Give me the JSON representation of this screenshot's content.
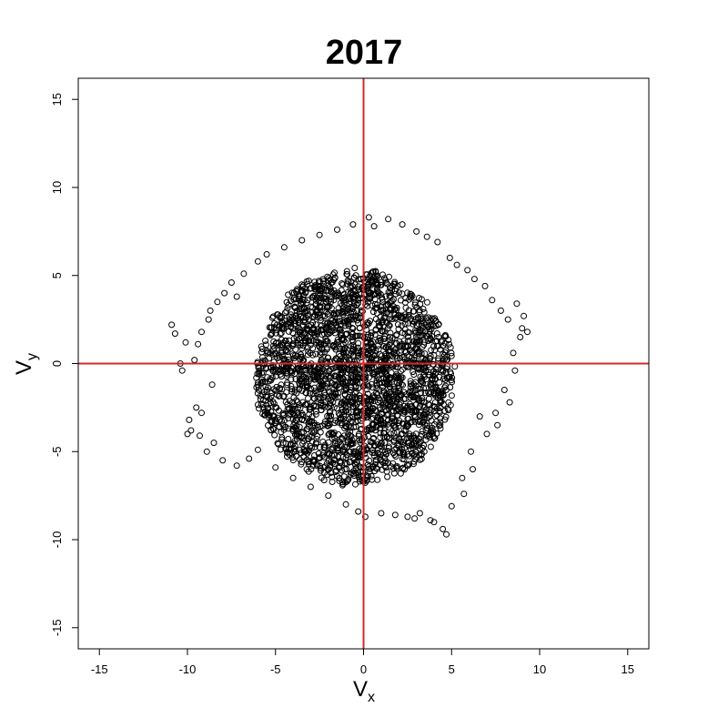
{
  "chart_data": {
    "type": "scatter",
    "title": "2017",
    "xlabel": {
      "main": "V",
      "subscript": "x"
    },
    "ylabel": {
      "main": "V",
      "subscript": "y"
    },
    "xlim": [
      -16.2,
      16.2
    ],
    "ylim": [
      -16.2,
      16.2
    ],
    "x_ticks": [
      -15,
      -10,
      -5,
      0,
      5,
      10,
      15
    ],
    "y_ticks": [
      -15,
      -10,
      -5,
      0,
      5,
      10,
      15
    ],
    "x_tick_labels": [
      "-15",
      "-10",
      "-5",
      "0",
      "5",
      "10",
      "15"
    ],
    "y_tick_labels": [
      "-15",
      "-10",
      "-5",
      "0",
      "5",
      "10",
      "15"
    ],
    "reference_lines": {
      "x": 0,
      "y": 0,
      "color": "#d62728"
    },
    "marker": {
      "shape": "open-circle",
      "color": "#000000"
    },
    "grid": false,
    "cloud": {
      "center": [
        -0.5,
        -0.8
      ],
      "approx_x_range": [
        -10.8,
        9.3
      ],
      "approx_y_range": [
        -9.7,
        8.3
      ]
    },
    "points": [
      [
        -10.9,
        2.2
      ],
      [
        -10.7,
        1.7
      ],
      [
        -10.4,
        0.0
      ],
      [
        -10.3,
        -0.4
      ],
      [
        -10.1,
        1.2
      ],
      [
        -10.0,
        -4.0
      ],
      [
        -9.9,
        -3.2
      ],
      [
        -9.6,
        0.2
      ],
      [
        -9.5,
        -2.5
      ],
      [
        -9.4,
        1.1
      ],
      [
        -9.3,
        -4.1
      ],
      [
        -9.2,
        1.8
      ],
      [
        -8.9,
        -5.0
      ],
      [
        -8.8,
        2.5
      ],
      [
        -8.7,
        3.0
      ],
      [
        -8.5,
        -4.5
      ],
      [
        -8.3,
        3.5
      ],
      [
        -8.0,
        -5.5
      ],
      [
        -7.9,
        4.0
      ],
      [
        -7.5,
        4.6
      ],
      [
        -7.2,
        -5.8
      ],
      [
        -6.8,
        5.1
      ],
      [
        -6.5,
        -5.4
      ],
      [
        -6.0,
        5.8
      ],
      [
        -5.5,
        6.2
      ],
      [
        -5.0,
        -5.9
      ],
      [
        -4.5,
        6.6
      ],
      [
        -4.0,
        -6.5
      ],
      [
        -3.5,
        7.0
      ],
      [
        -3.0,
        -7.0
      ],
      [
        -2.5,
        7.3
      ],
      [
        -2.0,
        -7.5
      ],
      [
        -1.5,
        7.6
      ],
      [
        -1.0,
        -8.0
      ],
      [
        -0.6,
        7.9
      ],
      [
        -0.3,
        -8.4
      ],
      [
        0.1,
        -8.7
      ],
      [
        0.3,
        8.3
      ],
      [
        0.6,
        7.8
      ],
      [
        1.0,
        -8.5
      ],
      [
        1.4,
        8.2
      ],
      [
        1.8,
        -8.6
      ],
      [
        2.2,
        7.9
      ],
      [
        2.5,
        -8.7
      ],
      [
        3.0,
        7.5
      ],
      [
        3.2,
        -8.5
      ],
      [
        3.6,
        7.2
      ],
      [
        4.0,
        -9.0
      ],
      [
        4.2,
        6.9
      ],
      [
        4.5,
        -9.4
      ],
      [
        4.7,
        -9.7
      ],
      [
        4.9,
        6.0
      ],
      [
        5.0,
        -8.1
      ],
      [
        5.3,
        5.6
      ],
      [
        5.6,
        -6.5
      ],
      [
        5.9,
        5.3
      ],
      [
        6.1,
        -5.0
      ],
      [
        6.3,
        4.8
      ],
      [
        6.6,
        -3.0
      ],
      [
        6.9,
        4.4
      ],
      [
        7.0,
        -4.0
      ],
      [
        7.3,
        3.6
      ],
      [
        7.5,
        -2.8
      ],
      [
        7.8,
        3.0
      ],
      [
        8.0,
        -1.5
      ],
      [
        8.2,
        2.5
      ],
      [
        8.5,
        0.6
      ],
      [
        8.6,
        -0.4
      ],
      [
        8.7,
        3.4
      ],
      [
        8.9,
        1.5
      ],
      [
        9.0,
        2.0
      ],
      [
        9.1,
        2.7
      ],
      [
        9.3,
        1.8
      ],
      [
        8.3,
        -2.2
      ],
      [
        7.6,
        -3.5
      ],
      [
        6.2,
        -6.0
      ],
      [
        5.7,
        -7.4
      ],
      [
        3.8,
        -8.9
      ],
      [
        2.9,
        -8.8
      ],
      [
        -9.2,
        -2.8
      ],
      [
        -9.8,
        -3.8
      ],
      [
        -8.6,
        -1.2
      ],
      [
        -7.2,
        3.8
      ],
      [
        -6.0,
        -4.9
      ]
    ]
  }
}
